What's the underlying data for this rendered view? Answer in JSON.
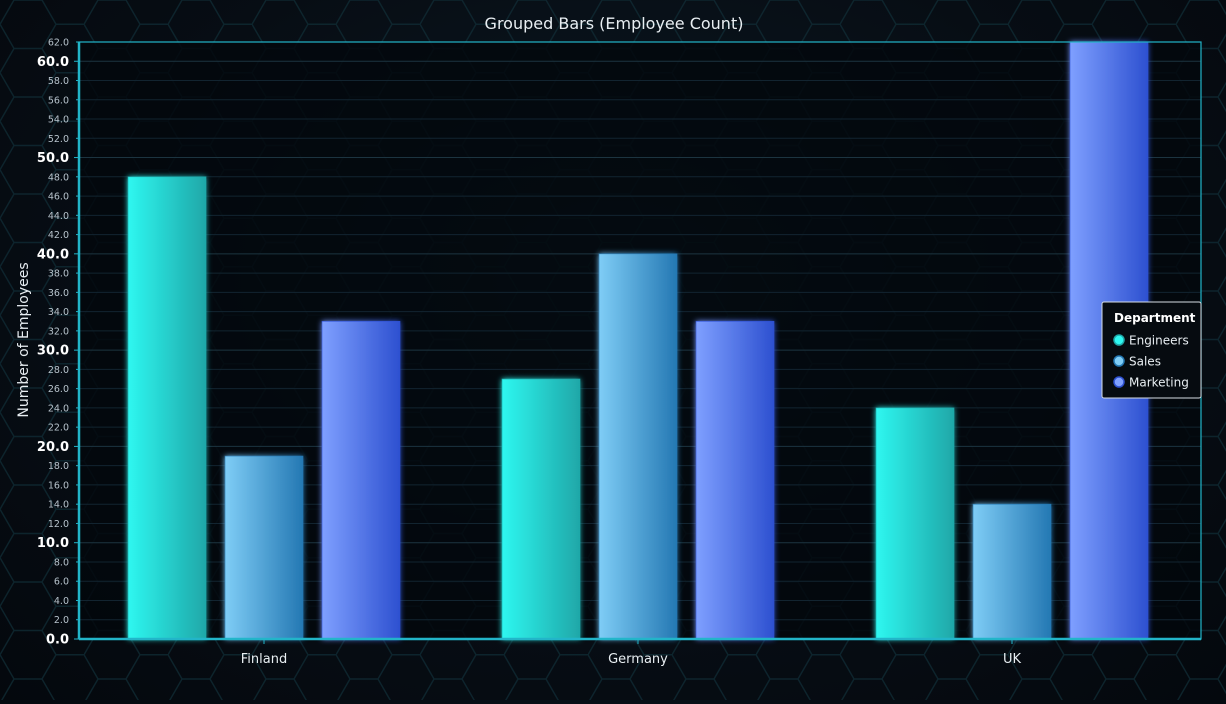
{
  "chart_data": {
    "type": "bar",
    "title": "Grouped Bars (Employee Count)",
    "xlabel": "",
    "ylabel": "Number of Employees",
    "categories": [
      "Finland",
      "Germany",
      "UK"
    ],
    "series": [
      {
        "name": "Engineers",
        "values": [
          48,
          27,
          24
        ]
      },
      {
        "name": "Sales",
        "values": [
          19,
          40,
          14
        ]
      },
      {
        "name": "Marketing",
        "values": [
          33,
          33,
          62
        ]
      }
    ],
    "ylim": [
      0,
      62
    ],
    "y_major_ticks": [
      "0.0",
      "10.0",
      "20.0",
      "30.0",
      "40.0",
      "50.0",
      "60.0"
    ],
    "y_minor_ticks": [
      "2.0",
      "4.0",
      "6.0",
      "8.0",
      "12.0",
      "14.0",
      "16.0",
      "18.0",
      "22.0",
      "24.0",
      "26.0",
      "28.0",
      "32.0",
      "34.0",
      "36.0",
      "38.0",
      "42.0",
      "44.0",
      "46.0",
      "48.0",
      "52.0",
      "54.0",
      "56.0",
      "58.0",
      "62.0"
    ],
    "grid": true,
    "legend": {
      "title": "Department",
      "placement": "right"
    },
    "colors": {
      "Engineers": [
        "#2ef7f0",
        "#1fa7a8"
      ],
      "Sales": [
        "#7fcdf6",
        "#2478b3"
      ],
      "Marketing": [
        "#7fa0ff",
        "#2d50d0"
      ],
      "axis": "#22b5c9",
      "text": "#e8eef2"
    }
  }
}
